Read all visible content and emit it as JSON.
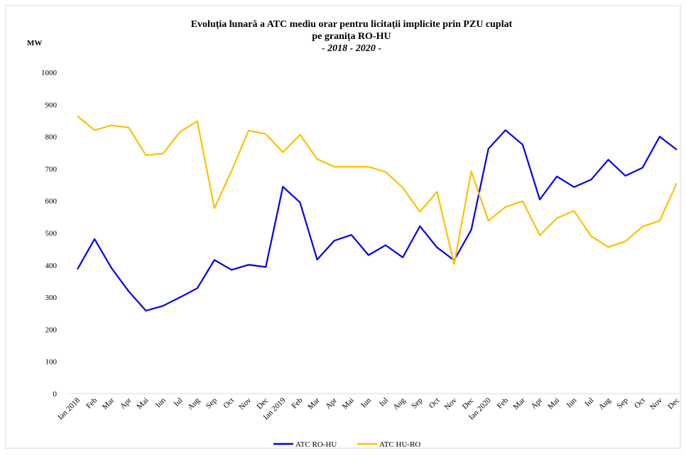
{
  "chart_data": {
    "type": "line",
    "title": [
      "Evoluția lunară a ATC mediu orar pentru licitații implicite prin PZU cuplat",
      "pe granița RO-HU"
    ],
    "subtitle": "- 2018 - 2020 -",
    "ylabel": "MW",
    "categories": [
      "Ian 2018",
      "Feb",
      "Mar",
      "Apr",
      "Mai",
      "Iun",
      "Iul",
      "Aug",
      "Sep",
      "Oct",
      "Nov",
      "Dec",
      "Ian 2019",
      "Feb",
      "Mar",
      "Apr",
      "Mai",
      "Iun",
      "Iul",
      "Aug",
      "Sep",
      "Oct",
      "Nov",
      "Dec",
      "Ian 2020",
      "Feb",
      "Mar",
      "Apr",
      "Mai",
      "Iun",
      "Iul",
      "Aug",
      "Sep",
      "Oct",
      "Nov",
      "Dec"
    ],
    "series": [
      {
        "name": "ATC RO-HU",
        "color": "#0000ee",
        "values": [
          387,
          481,
          390,
          318,
          258,
          273,
          300,
          328,
          416,
          385,
          401,
          394,
          644,
          595,
          417,
          476,
          494,
          431,
          462,
          424,
          521,
          455,
          415,
          510,
          762,
          820,
          775,
          604,
          676,
          643,
          666,
          728,
          678,
          703,
          800,
          759
        ]
      },
      {
        "name": "ATC HU-RO",
        "color": "#ffc000",
        "values": [
          864,
          820,
          835,
          828,
          742,
          747,
          815,
          848,
          577,
          693,
          819,
          808,
          751,
          806,
          730,
          706,
          706,
          706,
          690,
          641,
          566,
          628,
          403,
          692,
          538,
          581,
          599,
          493,
          546,
          569,
          490,
          456,
          474,
          520,
          538,
          655
        ]
      }
    ],
    "ylim": [
      0,
      1000
    ],
    "yticks": [
      0,
      100,
      200,
      300,
      400,
      500,
      600,
      700,
      800,
      900,
      1000
    ],
    "legend": "bottom"
  }
}
